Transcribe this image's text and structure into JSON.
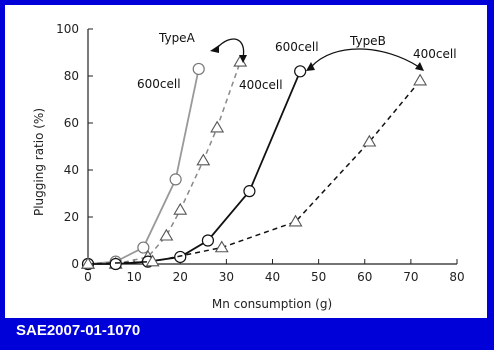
{
  "footer": {
    "source": "SAE2007-01-1070"
  },
  "chart_data": {
    "type": "line",
    "title": "",
    "xlabel": "Mn consumption (g)",
    "ylabel": "Plugging ratio (%)",
    "xlim": [
      0,
      80
    ],
    "ylim": [
      0,
      100
    ],
    "xticks": [
      0,
      10,
      20,
      30,
      40,
      50,
      60,
      70,
      80
    ],
    "yticks": [
      0,
      20,
      40,
      60,
      80,
      100
    ],
    "grid": false,
    "series": [
      {
        "name": "TypeA 600cell",
        "marker": "circle",
        "line": "solid",
        "color": "#999999",
        "x": [
          0,
          6,
          12,
          19,
          24
        ],
        "y": [
          0,
          1,
          7,
          36,
          83
        ]
      },
      {
        "name": "TypeA 400cell",
        "marker": "triangle",
        "line": "dashed",
        "color": "#888888",
        "x": [
          0,
          6,
          13,
          17,
          20,
          25,
          28,
          33
        ],
        "y": [
          0,
          0,
          3,
          12,
          23,
          44,
          58,
          86
        ]
      },
      {
        "name": "TypeB 600cell",
        "marker": "circle",
        "line": "solid",
        "color": "#111111",
        "x": [
          0,
          6,
          13,
          20,
          26,
          35,
          46
        ],
        "y": [
          0,
          0,
          1,
          3,
          10,
          31,
          82
        ]
      },
      {
        "name": "TypeB 400cell",
        "marker": "triangle",
        "line": "dashed",
        "color": "#111111",
        "x": [
          0,
          14,
          29,
          45,
          61,
          72
        ],
        "y": [
          0,
          1,
          7,
          18,
          52,
          78
        ]
      }
    ],
    "annotations": [
      {
        "text": "TypeA"
      },
      {
        "text": "600cell"
      },
      {
        "text": "400cell"
      },
      {
        "text": "600cell"
      },
      {
        "text": "TypeB"
      },
      {
        "text": "400cell"
      }
    ]
  }
}
